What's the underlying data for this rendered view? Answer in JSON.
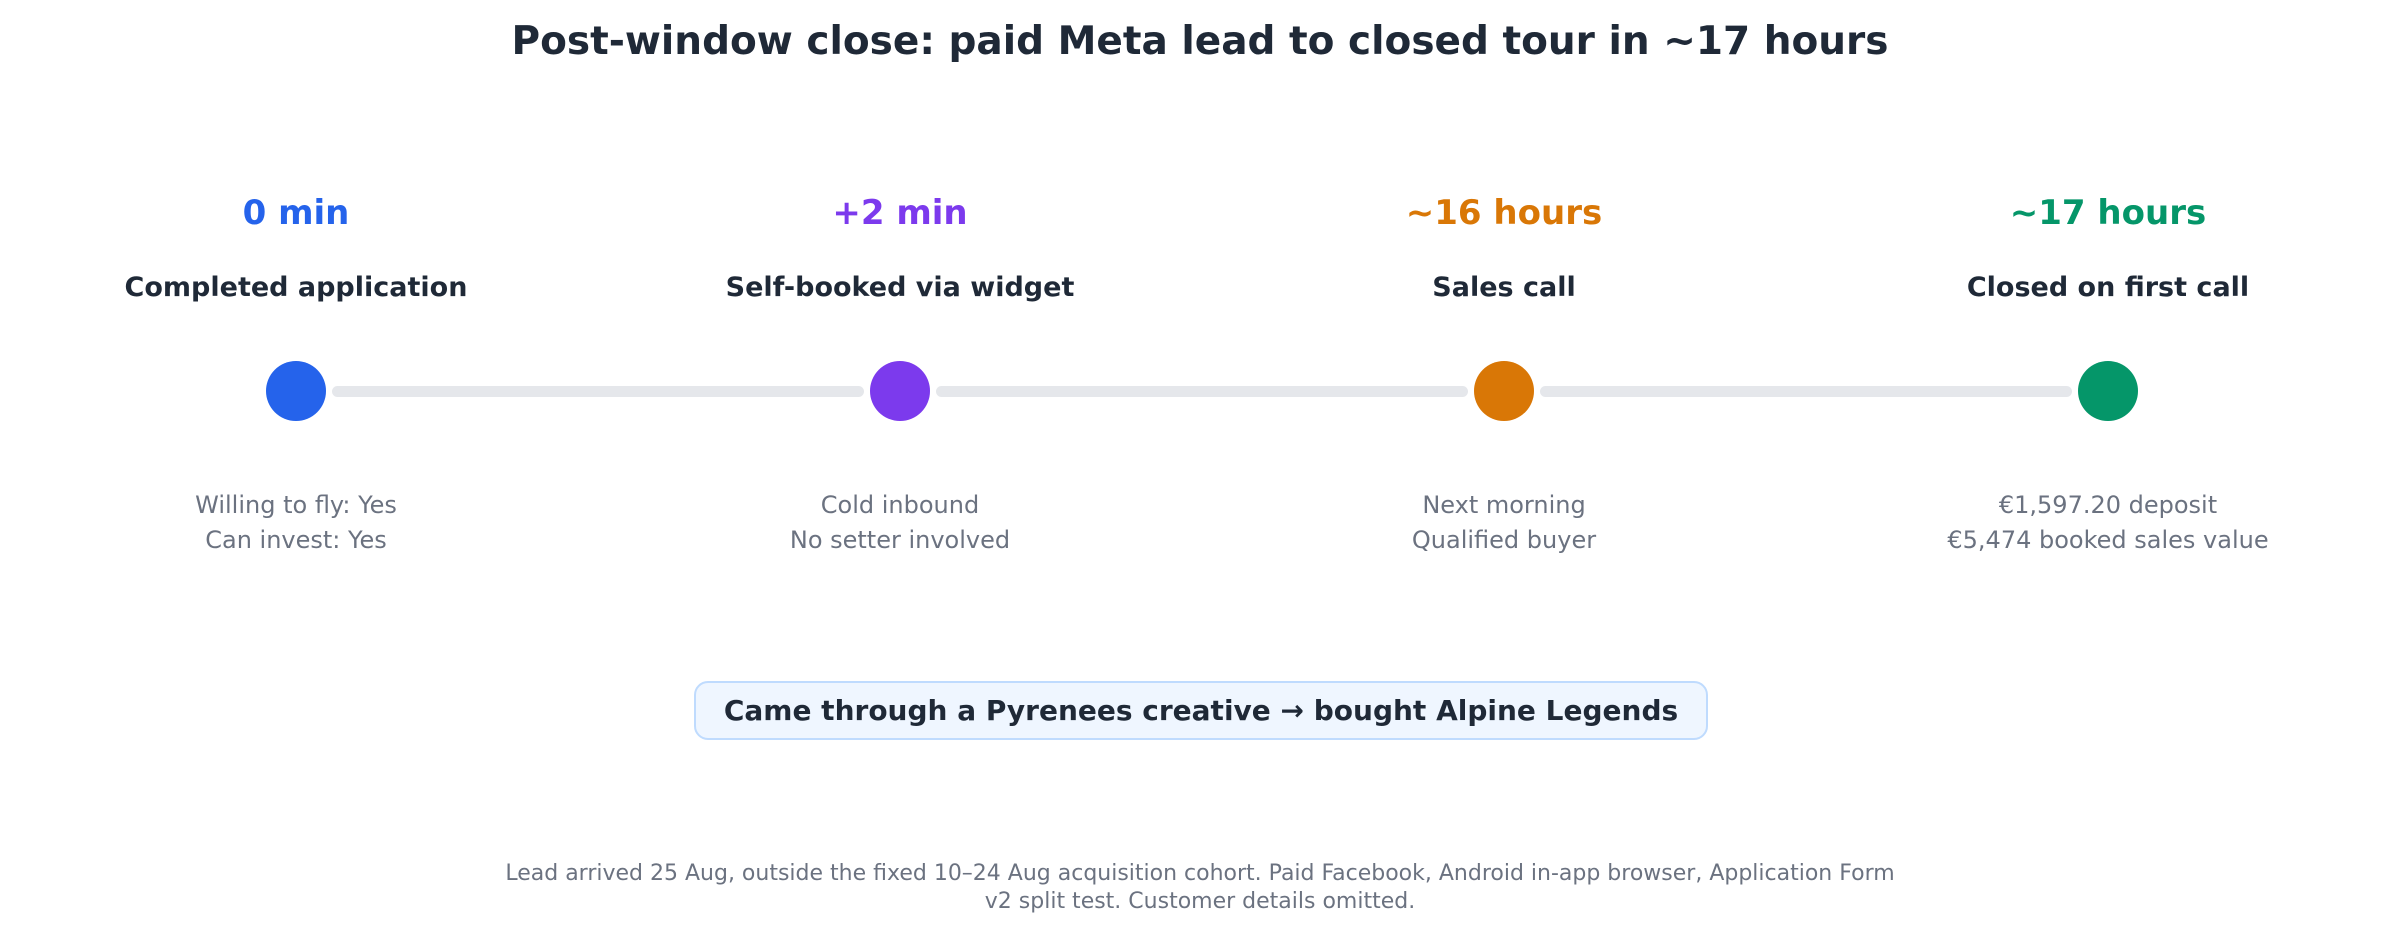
{
  "title": "Post-window close: paid Meta lead to closed tour in ~17 hours",
  "milestones": [
    {
      "time": "0 min",
      "label": "Completed application",
      "detail_lines": [
        "Willing to fly: Yes",
        "Can invest: Yes"
      ],
      "color": "#2563eb"
    },
    {
      "time": "+2 min",
      "label": "Self-booked via widget",
      "detail_lines": [
        "Cold inbound",
        "No setter involved"
      ],
      "color": "#7c3aed"
    },
    {
      "time": "~16 hours",
      "label": "Sales call",
      "detail_lines": [
        "Next morning",
        "Qualified buyer"
      ],
      "color": "#d97706"
    },
    {
      "time": "~17 hours",
      "label": "Closed on first call",
      "detail_lines": [
        "€1,597.20 deposit",
        "€5,474 booked sales value"
      ],
      "color": "#059669"
    }
  ],
  "connector_color": "#e5e7eb",
  "callout": "Came through a Pyrenees creative → bought Alpine Legends",
  "footnote_lines": [
    "Lead arrived 25 Aug, outside the fixed 10–24 Aug acquisition cohort. Paid Facebook, Android in-app browser, Application Form",
    "v2 split test. Customer details omitted."
  ]
}
